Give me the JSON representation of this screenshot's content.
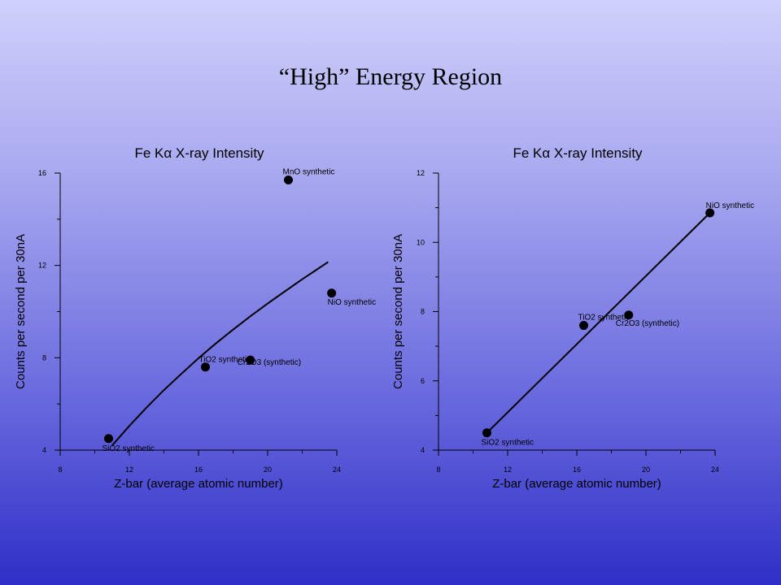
{
  "slide_title": "“High” Energy Region",
  "chart_data": [
    {
      "type": "scatter",
      "title": "Fe Kα X-ray Intensity",
      "xlabel": "Z-bar (average atomic number)",
      "ylabel": "Counts per second per 30nA",
      "xlim": [
        8,
        24
      ],
      "ylim": [
        4,
        16
      ],
      "x_ticks": [
        8,
        12,
        16,
        20,
        24
      ],
      "y_ticks": [
        4,
        8,
        12,
        16
      ],
      "points": [
        {
          "label": "MnO synthetic",
          "x": 21.2,
          "y": 15.7
        },
        {
          "label": "NiO synthetic",
          "x": 23.7,
          "y": 10.8
        },
        {
          "label": "TiO2 synthetic",
          "x": 16.4,
          "y": 7.6
        },
        {
          "label": "Cr2O3 (synthetic)",
          "x": 19.0,
          "y": 7.9
        },
        {
          "label": "SiO2 synthetic",
          "x": 10.8,
          "y": 4.5
        }
      ],
      "fit_curve": {
        "x": [
          11.0,
          12.0,
          13.0,
          14.0,
          15.0,
          16.0,
          17.0,
          18.0,
          19.0,
          20.0,
          21.0,
          22.0,
          23.0,
          23.5
        ],
        "y": [
          4.2,
          5.05,
          5.85,
          6.6,
          7.3,
          7.98,
          8.62,
          9.22,
          9.8,
          10.35,
          10.88,
          11.4,
          11.9,
          12.15
        ]
      }
    },
    {
      "type": "scatter",
      "title": "Fe Kα X-ray Intensity",
      "xlabel": "Z-bar (average atomic number)",
      "ylabel": "Counts per second per 30nA",
      "xlim": [
        8,
        24
      ],
      "ylim": [
        4,
        12
      ],
      "x_ticks": [
        8,
        12,
        16,
        20,
        24
      ],
      "y_ticks": [
        4,
        6,
        8,
        10,
        12
      ],
      "points": [
        {
          "label": "NiO synthetic",
          "x": 23.7,
          "y": 10.85
        },
        {
          "label": "TiO2 synthetic",
          "x": 16.4,
          "y": 7.6
        },
        {
          "label": "Cr2O3 (synthetic)",
          "x": 19.0,
          "y": 7.9
        },
        {
          "label": "SiO2 synthetic",
          "x": 10.8,
          "y": 4.5
        }
      ],
      "fit_line": {
        "x": [
          10.8,
          23.7
        ],
        "y": [
          4.5,
          10.85
        ]
      }
    }
  ]
}
